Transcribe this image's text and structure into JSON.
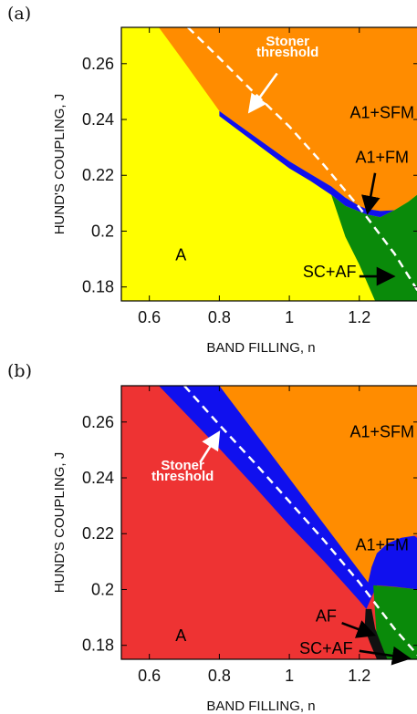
{
  "chart_data": [
    {
      "panel_label": "(a)",
      "type": "phase-diagram",
      "xlabel": "BAND FILLING, n",
      "ylabel": "HUND'S COUPLING, J",
      "xlim": [
        0.52,
        1.37
      ],
      "ylim": [
        0.175,
        0.273
      ],
      "xticks": [
        0.6,
        0.8,
        1,
        1.2
      ],
      "xtick_labels": [
        "0.6",
        "0.8",
        "1",
        "1.2"
      ],
      "yticks": [
        0.18,
        0.2,
        0.22,
        0.24,
        0.26
      ],
      "ytick_labels": [
        "0.18",
        "0.2",
        "0.22",
        "0.24",
        "0.26"
      ],
      "grid": false,
      "colors": {
        "A": "#ffff00",
        "A1+SFM": "#ff8c00",
        "A1+FM": "#1010ee",
        "SC+AF": "#0a8a0a"
      },
      "regions": [
        {
          "label": "A1+SFM",
          "color": "#ff8c00",
          "polygon": [
            [
              0.627,
              0.273
            ],
            [
              1.37,
              0.273
            ],
            [
              1.37,
              0.2135
            ],
            [
              1.34,
              0.2105
            ],
            [
              1.3,
              0.2075
            ],
            [
              1.26,
              0.2072
            ],
            [
              1.22,
              0.208
            ],
            [
              1.2,
              0.209
            ],
            [
              1.16,
              0.212
            ],
            [
              1.12,
              0.216
            ],
            [
              1.06,
              0.2205
            ],
            [
              1.0,
              0.225
            ],
            [
              0.8,
              0.243
            ],
            [
              0.7,
              0.2605
            ]
          ]
        },
        {
          "label": "A1+FM",
          "color": "#1010ee",
          "polygon": [
            [
              0.8,
              0.243
            ],
            [
              1.0,
              0.225
            ],
            [
              1.06,
              0.2205
            ],
            [
              1.12,
              0.216
            ],
            [
              1.16,
              0.212
            ],
            [
              1.2,
              0.209
            ],
            [
              1.22,
              0.208
            ],
            [
              1.26,
              0.2072
            ],
            [
              1.3,
              0.2075
            ],
            [
              1.26,
              0.205
            ],
            [
              1.22,
              0.206
            ],
            [
              1.19,
              0.2075
            ],
            [
              1.16,
              0.209
            ],
            [
              1.12,
              0.213
            ],
            [
              1.06,
              0.218
            ],
            [
              1.0,
              0.2225
            ],
            [
              0.8,
              0.2412
            ]
          ]
        },
        {
          "label": "SC+AF",
          "color": "#0a8a0a",
          "polygon": [
            [
              1.12,
              0.213
            ],
            [
              1.16,
              0.209
            ],
            [
              1.19,
              0.2075
            ],
            [
              1.22,
              0.206
            ],
            [
              1.26,
              0.205
            ],
            [
              1.3,
              0.2075
            ],
            [
              1.34,
              0.2105
            ],
            [
              1.37,
              0.2135
            ],
            [
              1.37,
              0.175
            ],
            [
              1.245,
              0.175
            ],
            [
              1.2,
              0.188
            ],
            [
              1.16,
              0.198
            ]
          ]
        }
      ],
      "stoner_threshold": {
        "style": "dashed",
        "color": "#ffffff",
        "x": [
          0.71,
          0.8,
          0.9,
          1.0,
          1.1,
          1.2,
          1.3,
          1.37
        ],
        "y": [
          0.273,
          0.262,
          0.2495,
          0.2375,
          0.2235,
          0.2085,
          0.192,
          0.178
        ]
      },
      "annotations": [
        {
          "text": "Stoner",
          "x": 0.995,
          "y": 0.2665,
          "color": "#ffffff",
          "bold": true,
          "anchor": "middle"
        },
        {
          "text": "threshold",
          "x": 0.995,
          "y": 0.2625,
          "color": "#ffffff",
          "bold": true,
          "anchor": "middle"
        },
        {
          "text": "A1+SFM",
          "x": 1.265,
          "y": 0.2405,
          "color": "#000000",
          "bold": false,
          "anchor": "middle"
        },
        {
          "text": "A1+FM",
          "x": 1.265,
          "y": 0.2245,
          "color": "#000000",
          "bold": false,
          "anchor": "middle"
        },
        {
          "text": "SC+AF",
          "x": 1.115,
          "y": 0.1835,
          "color": "#000000",
          "bold": false,
          "anchor": "middle"
        },
        {
          "text": "A",
          "x": 0.69,
          "y": 0.1895,
          "color": "#000000",
          "bold": false,
          "anchor": "middle"
        }
      ],
      "arrows": [
        {
          "from": [
            0.965,
            0.2565
          ],
          "to": [
            0.89,
            0.2435
          ],
          "color": "#ffffff"
        },
        {
          "from": [
            1.245,
            0.2208
          ],
          "to": [
            1.225,
            0.2075
          ],
          "color": "#000000"
        },
        {
          "from": [
            1.2,
            0.1838
          ],
          "to": [
            1.29,
            0.1838
          ],
          "color": "#000000"
        }
      ]
    },
    {
      "panel_label": "(b)",
      "type": "phase-diagram",
      "xlabel": "BAND FILLING, n",
      "ylabel": "HUND'S COUPLING, J",
      "xlim": [
        0.52,
        1.37
      ],
      "ylim": [
        0.175,
        0.273
      ],
      "xticks": [
        0.6,
        0.8,
        1,
        1.2
      ],
      "xtick_labels": [
        "0.6",
        "0.8",
        "1",
        "1.2"
      ],
      "yticks": [
        0.18,
        0.2,
        0.22,
        0.24,
        0.26
      ],
      "ytick_labels": [
        "0.18",
        "0.2",
        "0.22",
        "0.24",
        "0.26"
      ],
      "grid": false,
      "colors": {
        "A": "#ee3333",
        "A1+SFM": "#ff8c00",
        "A1+FM": "#1010ee",
        "SC+AF": "#0a8a0a",
        "AF": "#111111"
      },
      "regions": [
        {
          "label": "A1+FM",
          "color": "#1010ee",
          "polygon": [
            [
              0.627,
              0.273
            ],
            [
              0.8,
              0.273
            ],
            [
              1.37,
              0.218
            ],
            [
              1.37,
              0.2
            ],
            [
              1.3,
              0.201
            ],
            [
              1.25,
              0.2015
            ],
            [
              1.22,
              0.193
            ],
            [
              1.2,
              0.196
            ],
            [
              1.1,
              0.21
            ],
            [
              1.0,
              0.223
            ],
            [
              0.9,
              0.237
            ],
            [
              0.8,
              0.2505
            ],
            [
              0.7,
              0.2635
            ]
          ]
        },
        {
          "label": "A1+SFM",
          "color": "#ff8c00",
          "polygon": [
            [
              0.8,
              0.273
            ],
            [
              1.37,
              0.273
            ],
            [
              1.37,
              0.2195
            ],
            [
              1.32,
              0.2185
            ],
            [
              1.28,
              0.2165
            ],
            [
              1.25,
              0.213
            ],
            [
              1.235,
              0.208
            ],
            [
              1.225,
              0.2025
            ]
          ]
        },
        {
          "label": "SC+AF",
          "color": "#0a8a0a",
          "polygon": [
            [
              1.24,
              0.2015
            ],
            [
              1.29,
              0.201
            ],
            [
              1.33,
              0.2005
            ],
            [
              1.37,
              0.2
            ],
            [
              1.37,
              0.175
            ],
            [
              1.27,
              0.175
            ],
            [
              1.25,
              0.182
            ]
          ]
        },
        {
          "label": "AF",
          "color": "#111111",
          "polygon": [
            [
              1.218,
              0.193
            ],
            [
              1.235,
              0.193
            ],
            [
              1.245,
              0.186
            ],
            [
              1.27,
              0.178
            ],
            [
              1.28,
              0.175
            ],
            [
              1.25,
              0.175
            ],
            [
              1.23,
              0.181
            ],
            [
              1.215,
              0.186
            ]
          ]
        }
      ],
      "stoner_threshold": {
        "style": "dashed",
        "color": "#ffffff",
        "x": [
          0.7,
          0.8,
          0.9,
          1.0,
          1.1,
          1.2,
          1.3,
          1.37
        ],
        "y": [
          0.273,
          0.259,
          0.2455,
          0.2315,
          0.2175,
          0.2025,
          0.186,
          0.176
        ]
      },
      "annotations": [
        {
          "text": "Stoner",
          "x": 0.695,
          "y": 0.243,
          "color": "#ffffff",
          "bold": true,
          "anchor": "middle"
        },
        {
          "text": "threshold",
          "x": 0.695,
          "y": 0.2391,
          "color": "#ffffff",
          "bold": true,
          "anchor": "middle"
        },
        {
          "text": "A1+SFM",
          "x": 1.265,
          "y": 0.2545,
          "color": "#000000",
          "bold": false,
          "anchor": "middle"
        },
        {
          "text": "A1+FM",
          "x": 1.265,
          "y": 0.214,
          "color": "#000000",
          "bold": false,
          "anchor": "middle"
        },
        {
          "text": "AF",
          "x": 1.105,
          "y": 0.1885,
          "color": "#000000",
          "bold": false,
          "anchor": "middle"
        },
        {
          "text": "SC+AF",
          "x": 1.105,
          "y": 0.177,
          "color": "#000000",
          "bold": false,
          "anchor": "middle"
        },
        {
          "text": "A",
          "x": 0.69,
          "y": 0.1815,
          "color": "#000000",
          "bold": false,
          "anchor": "middle"
        }
      ],
      "arrows": [
        {
          "from": [
            0.745,
            0.2455
          ],
          "to": [
            0.795,
            0.2555
          ],
          "color": "#ffffff"
        },
        {
          "from": [
            1.15,
            0.188
          ],
          "to": [
            1.235,
            0.184
          ],
          "color": "#000000"
        },
        {
          "from": [
            1.2,
            0.178
          ],
          "to": [
            1.335,
            0.1755
          ],
          "color": "#000000"
        }
      ]
    }
  ]
}
